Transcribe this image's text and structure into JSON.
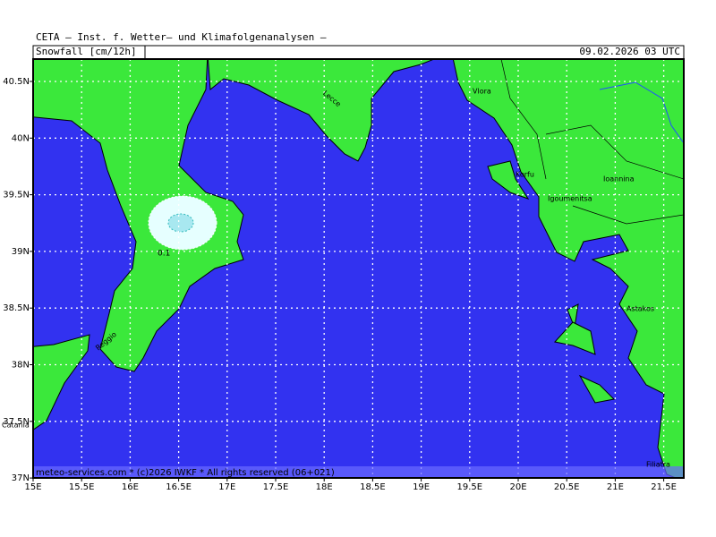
{
  "header": {
    "title": "CETA — Inst. f. Wetter— und Klimafolgenanalysen —",
    "parameter": "Snowfall [cm/12h]",
    "valid_time": "09.02.2026 03 UTC"
  },
  "map": {
    "lon_ticks": [
      "15E",
      "15.5E",
      "16E",
      "16.5E",
      "17E",
      "17.5E",
      "18E",
      "18.5E",
      "19E",
      "19.5E",
      "20E",
      "20.5E",
      "21E",
      "21.5E"
    ],
    "lat_ticks": [
      "40.5N",
      "40N",
      "39.5N",
      "39N",
      "38.5N",
      "38N",
      "37.5N",
      "37N"
    ],
    "places": [
      "Lecce",
      "Vlora",
      "Korfu",
      "Igoumenitsa",
      "Ioannina",
      "Astakos",
      "Reggio",
      "Catania",
      "Filiatra"
    ],
    "contour_label": "0.1"
  },
  "footer": "meteo-services.com * (c)2026 IWKF * All rights reserved (06+021)"
}
